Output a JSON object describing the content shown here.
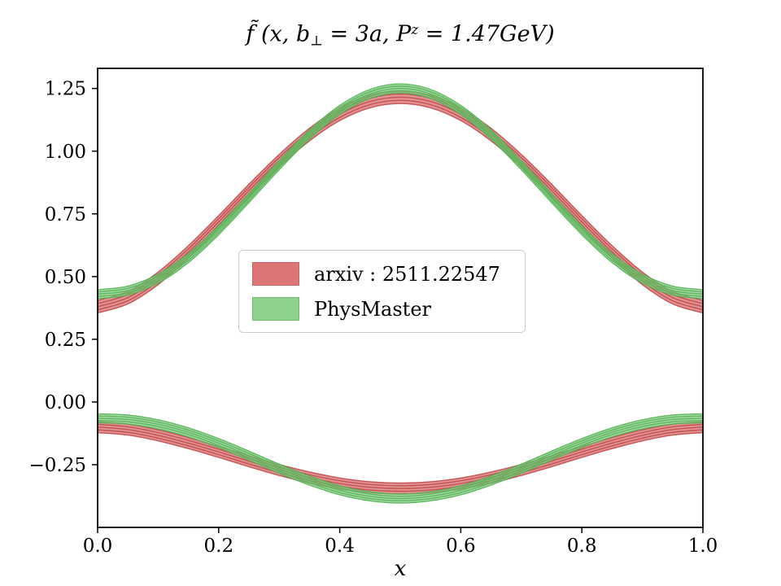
{
  "title": {
    "f": "f̃ ",
    "open": "(x, b",
    "sub": "⊥",
    "mid": " = 3a, P",
    "sup": "z",
    "close": " = 1.47GeV)"
  },
  "axes": {
    "xlabel": "x"
  },
  "legend": {
    "entries": [
      {
        "label": "arxiv : 2511.22547",
        "color": "#d65f5f",
        "edge_color": "#bf4a4d"
      },
      {
        "label": "PhysMaster",
        "color": "#7ac97a",
        "edge_color": "#55b355"
      }
    ]
  },
  "chart_data": {
    "type": "line",
    "title": "f̃(x, b⊥ = 3a, Pᶻ = 1.47GeV)",
    "xlabel": "x",
    "ylabel": "",
    "xlim": [
      0,
      1
    ],
    "ylim": [
      -0.5,
      1.33
    ],
    "grid": false,
    "legend_position": "center",
    "xticks": {
      "values": [
        0.0,
        0.2,
        0.4,
        0.6,
        0.8,
        1.0
      ],
      "labels": [
        "0.0",
        "0.2",
        "0.4",
        "0.6",
        "0.8",
        "1.0"
      ]
    },
    "yticks": {
      "values": [
        1.25,
        1.0,
        0.75,
        0.5,
        0.25,
        0.0,
        -0.25
      ],
      "labels": [
        "1.25",
        "1.00",
        "0.75",
        "0.50",
        "0.25",
        "0.00",
        "−0.25"
      ]
    },
    "x": [
      0,
      0.05,
      0.1,
      0.15,
      0.2,
      0.25,
      0.3,
      0.35,
      0.4,
      0.45,
      0.5,
      0.55,
      0.6,
      0.65,
      0.7,
      0.75,
      0.8,
      0.85,
      0.9,
      0.95,
      1.0
    ],
    "series": [
      {
        "name": "arxiv : 2511.22547",
        "color": "#d65f5f",
        "edge_color": "#bf4a4d",
        "branches": [
          {
            "name": "upper-band",
            "center": [
              0.38,
              0.416,
              0.493,
              0.598,
              0.718,
              0.843,
              0.962,
              1.066,
              1.147,
              1.198,
              1.215,
              1.198,
              1.147,
              1.066,
              0.962,
              0.843,
              0.718,
              0.598,
              0.493,
              0.416,
              0.38
            ],
            "halfwidth": 0.025
          },
          {
            "name": "lower-band",
            "center": [
              -0.1,
              -0.11,
              -0.133,
              -0.164,
              -0.199,
              -0.236,
              -0.271,
              -0.301,
              -0.325,
              -0.34,
              -0.345,
              -0.34,
              -0.325,
              -0.301,
              -0.271,
              -0.236,
              -0.199,
              -0.164,
              -0.133,
              -0.11,
              -0.1
            ],
            "halfwidth": 0.022
          }
        ]
      },
      {
        "name": "PhysMaster",
        "color": "#7ac97a",
        "edge_color": "#55b355",
        "branches": [
          {
            "name": "upper-band",
            "center": [
              0.43,
              0.444,
              0.492,
              0.574,
              0.685,
              0.813,
              0.944,
              1.066,
              1.164,
              1.228,
              1.25,
              1.228,
              1.164,
              1.066,
              0.944,
              0.813,
              0.685,
              0.574,
              0.492,
              0.444,
              0.43
            ],
            "halfwidth": 0.018
          },
          {
            "name": "lower-band",
            "center": [
              -0.065,
              -0.07,
              -0.089,
              -0.121,
              -0.164,
              -0.214,
              -0.266,
              -0.313,
              -0.352,
              -0.376,
              -0.385,
              -0.376,
              -0.352,
              -0.313,
              -0.266,
              -0.214,
              -0.164,
              -0.121,
              -0.089,
              -0.07,
              -0.065
            ],
            "halfwidth": 0.018
          }
        ]
      }
    ]
  }
}
